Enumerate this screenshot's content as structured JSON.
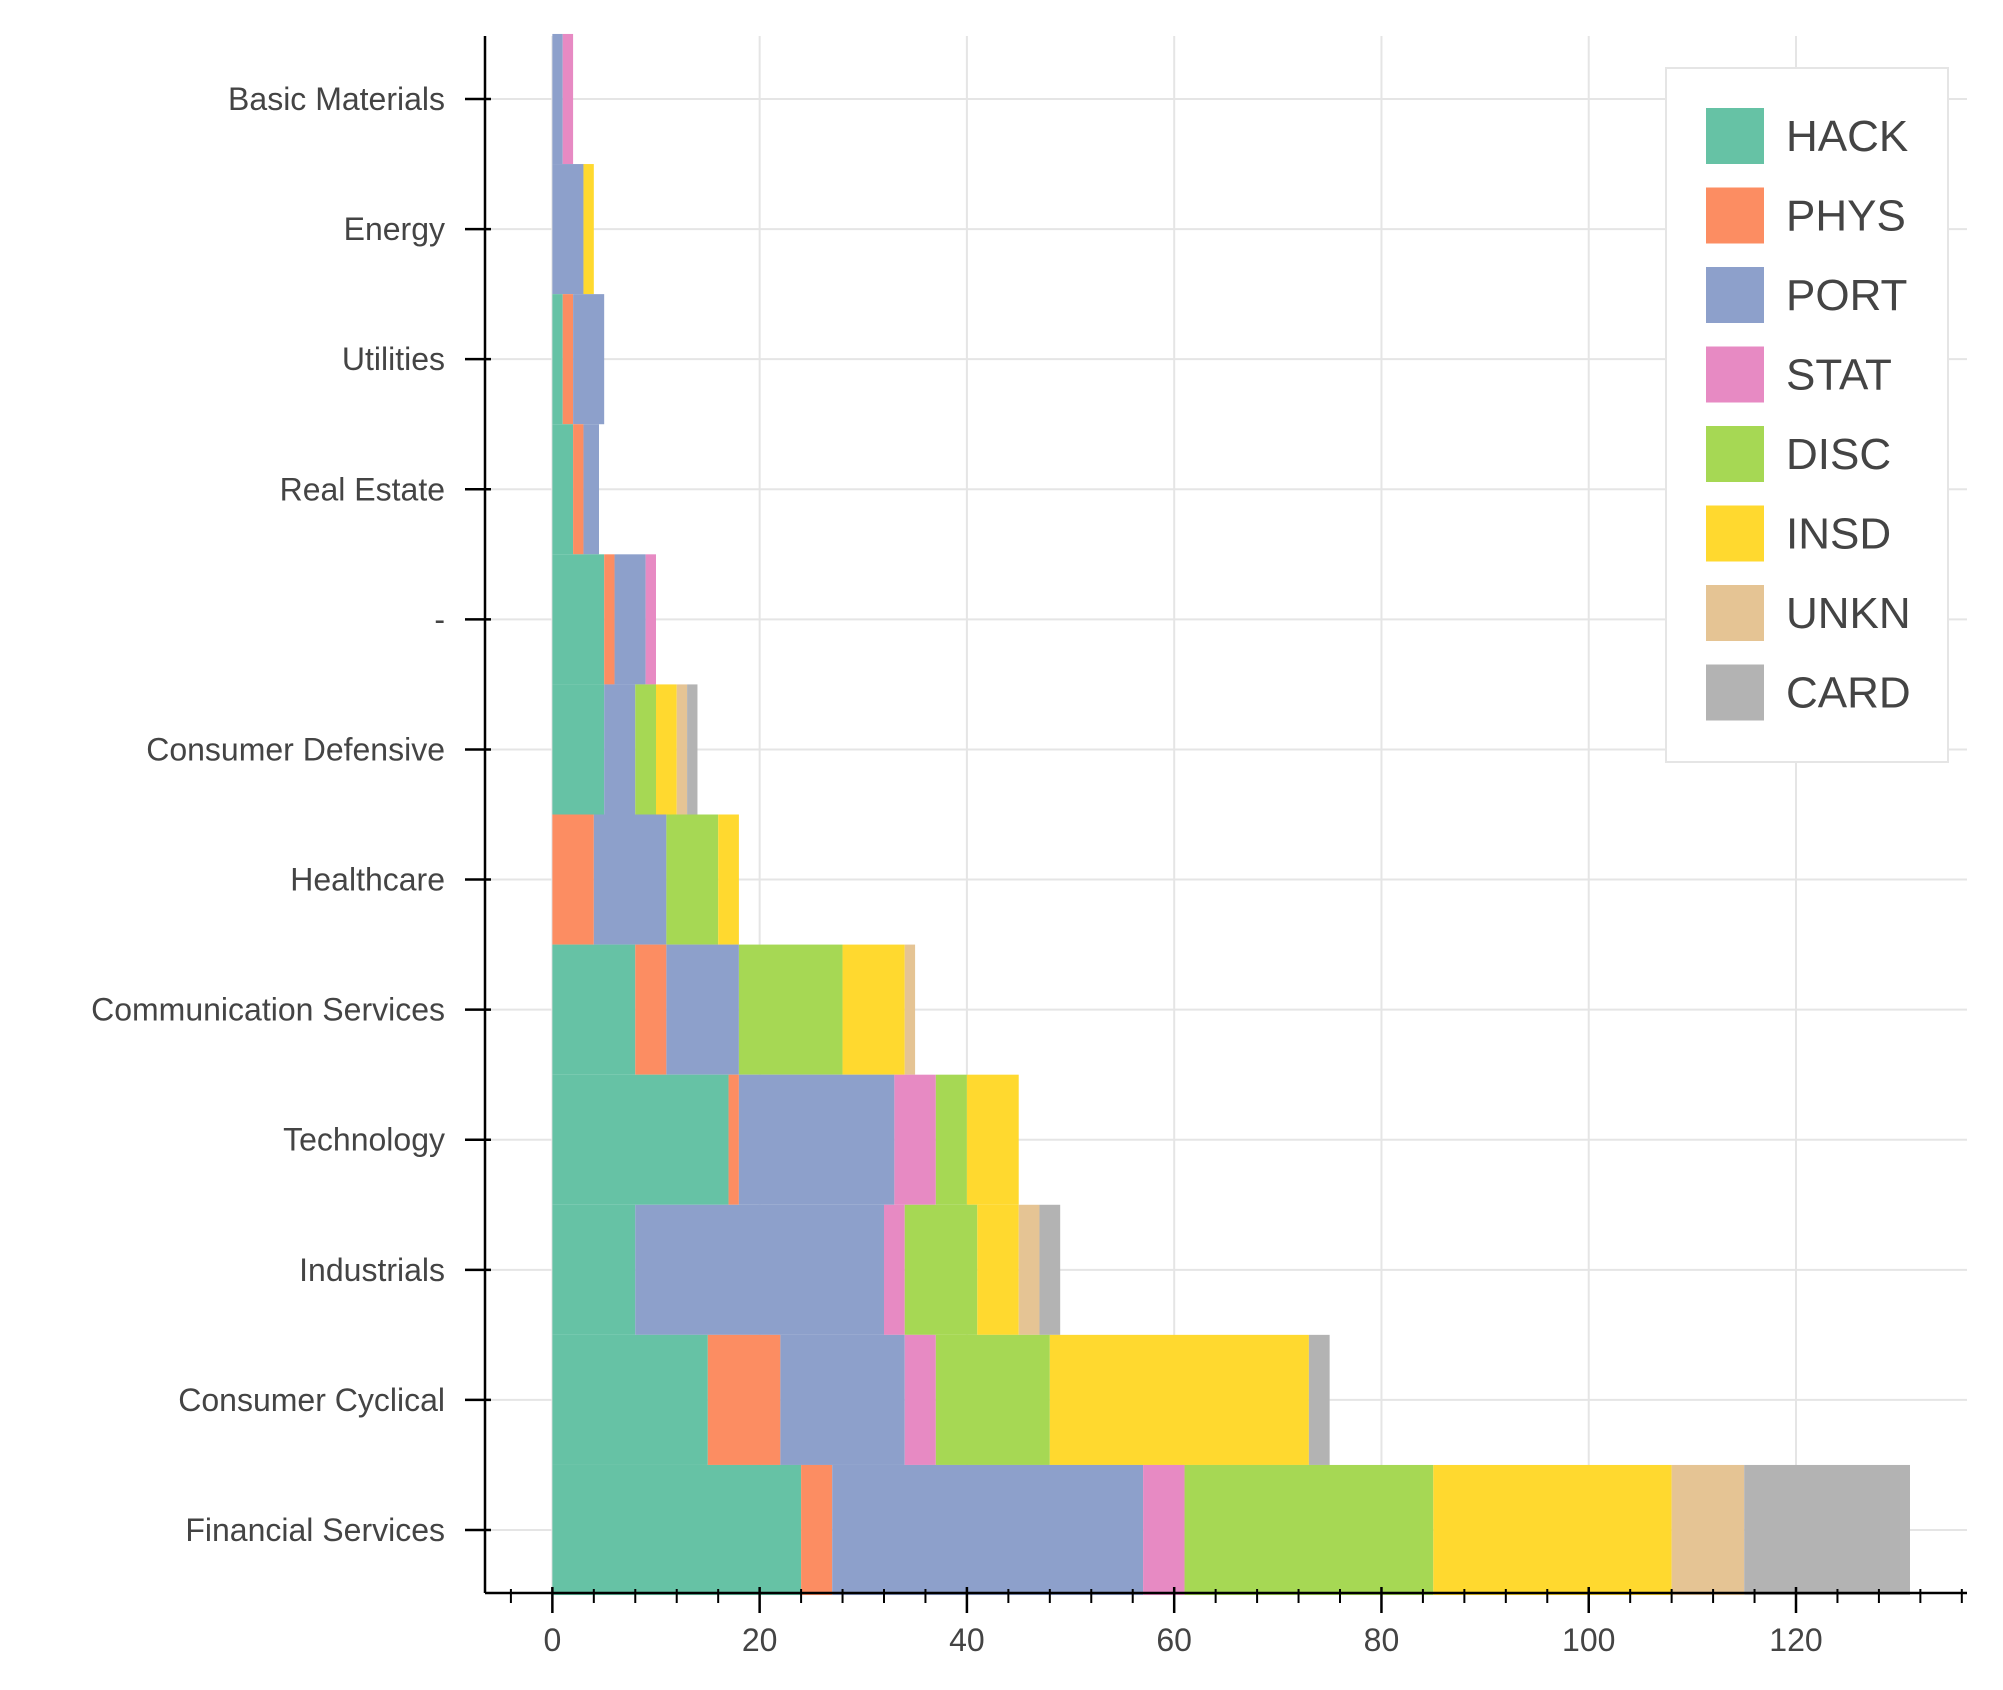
{
  "chart_data": {
    "type": "bar",
    "orientation": "horizontal",
    "stacked": true,
    "title": "",
    "xlabel": "",
    "ylabel": "",
    "xlim": [
      -6.5,
      136.5
    ],
    "x_ticks": [
      0,
      20,
      40,
      60,
      80,
      100,
      120
    ],
    "grid": true,
    "legend_position": "top-right",
    "categories": [
      "Basic Materials",
      "Energy",
      "Utilities",
      "Real Estate",
      "-",
      "Consumer Defensive",
      "Healthcare",
      "Communication Services",
      "Technology",
      "Industrials",
      "Consumer Cyclical",
      "Financial Services"
    ],
    "series": [
      {
        "name": "HACK",
        "color": "#66c2a5",
        "values": [
          0,
          0,
          1,
          2,
          5,
          5,
          0,
          8,
          17,
          8,
          15,
          24
        ]
      },
      {
        "name": "PHYS",
        "color": "#fc8d62",
        "values": [
          0,
          0,
          1,
          1,
          1,
          0,
          4,
          3,
          1,
          0,
          7,
          3
        ]
      },
      {
        "name": "PORT",
        "color": "#8da0cb",
        "values": [
          1,
          3,
          3,
          1.5,
          3,
          3,
          7,
          7,
          15,
          24,
          12,
          30
        ]
      },
      {
        "name": "STAT",
        "color": "#e78ac3",
        "values": [
          1,
          0,
          0,
          0,
          1,
          0,
          0,
          0,
          4,
          2,
          3,
          4
        ]
      },
      {
        "name": "DISC",
        "color": "#a6d854",
        "values": [
          0,
          0,
          0,
          0,
          0,
          2,
          5,
          10,
          3,
          7,
          11,
          24
        ]
      },
      {
        "name": "INSD",
        "color": "#ffd92f",
        "values": [
          0,
          1,
          0,
          0,
          0,
          2,
          2,
          6,
          5,
          4,
          25,
          23
        ]
      },
      {
        "name": "UNKN",
        "color": "#e5c494",
        "values": [
          0,
          0,
          0,
          0,
          0,
          1,
          0,
          1,
          0,
          2,
          0,
          7
        ]
      },
      {
        "name": "CARD",
        "color": "#b3b3b3",
        "values": [
          0,
          0,
          0,
          0,
          0,
          1,
          0,
          0,
          0,
          2,
          2,
          16
        ]
      }
    ]
  }
}
